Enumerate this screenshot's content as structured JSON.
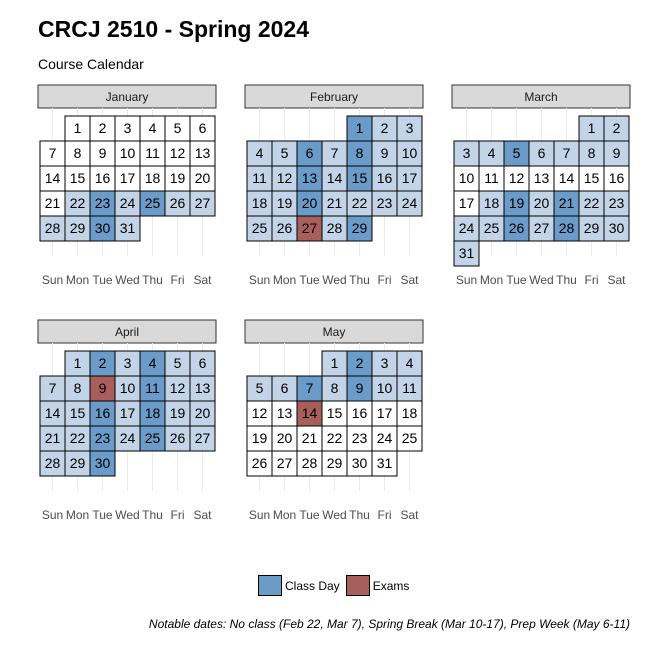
{
  "title": "CRCJ 2510 - Spring 2024",
  "subtitle": "Course Calendar",
  "caption": "Notable dates: No class (Feb 22, Mar 7), Spring Break (Mar 10-17), Prep Week (May 6-11)",
  "legend": [
    {
      "key": "class",
      "label": "Class Day",
      "color": "#6a9bc9"
    },
    {
      "key": "exam",
      "label": "Exams",
      "color": "#a85f5c"
    }
  ],
  "colors": {
    "semester": "#c4d4e8",
    "none": "#ffffff",
    "border": "#000000",
    "strip": "#d9d9d9",
    "grid": "#ebebeb",
    "axis_text": "#4d4d4d"
  },
  "chart_data": {
    "type": "heatmap",
    "weekday_labels": [
      "Sun",
      "Mon",
      "Tue",
      "Wed",
      "Thu",
      "Fri",
      "Sat"
    ],
    "months": [
      {
        "name": "January",
        "days": 31,
        "start_weekday": 1,
        "class_days": [
          23,
          25,
          30
        ],
        "exam_days": [],
        "semester_days": [
          22,
          24,
          26,
          27,
          28,
          29,
          31
        ]
      },
      {
        "name": "February",
        "days": 29,
        "start_weekday": 4,
        "class_days": [
          1,
          6,
          8,
          13,
          15,
          20,
          29
        ],
        "exam_days": [
          27
        ],
        "semester_days": [
          2,
          3,
          4,
          5,
          7,
          9,
          10,
          11,
          12,
          14,
          16,
          17,
          18,
          19,
          21,
          22,
          23,
          24,
          25,
          26,
          28
        ]
      },
      {
        "name": "March",
        "days": 31,
        "start_weekday": 5,
        "class_days": [
          5,
          19,
          21,
          26,
          28
        ],
        "exam_days": [],
        "semester_days": [
          1,
          2,
          3,
          4,
          6,
          7,
          8,
          9,
          18,
          20,
          22,
          23,
          24,
          25,
          27,
          29,
          30,
          31
        ]
      },
      {
        "name": "April",
        "days": 30,
        "start_weekday": 1,
        "class_days": [
          2,
          4,
          11,
          16,
          18,
          23,
          25,
          30
        ],
        "exam_days": [
          9
        ],
        "semester_days": [
          1,
          3,
          5,
          6,
          7,
          8,
          10,
          12,
          13,
          14,
          15,
          17,
          19,
          20,
          21,
          22,
          24,
          26,
          27,
          28,
          29
        ]
      },
      {
        "name": "May",
        "days": 31,
        "start_weekday": 3,
        "class_days": [
          2,
          7,
          9
        ],
        "exam_days": [
          14
        ],
        "semester_days": [
          1,
          3,
          4,
          5,
          6,
          8,
          10,
          11
        ]
      }
    ]
  }
}
